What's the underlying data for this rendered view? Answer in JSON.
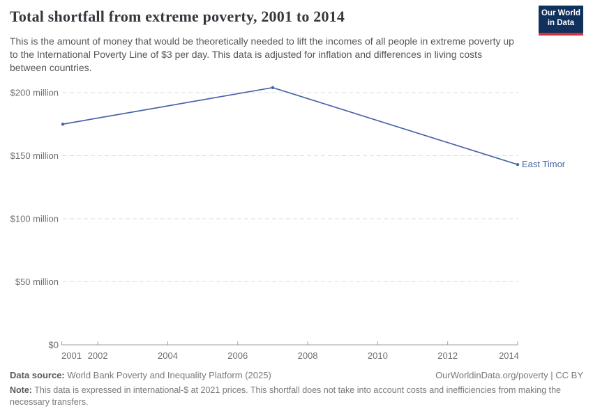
{
  "header": {
    "title": "Total shortfall from extreme poverty, 2001 to 2014",
    "subtitle": "This is the amount of money that would be theoretically needed to lift the incomes of all people in extreme poverty up to the International Poverty Line of $3 per day. This data is adjusted for inflation and differences in living costs between countries.",
    "logo": {
      "line1": "Our World",
      "line2": "in Data",
      "bg_color": "#10305e",
      "accent_color": "#d1353a"
    }
  },
  "chart_data": {
    "type": "line",
    "title": "Total shortfall from extreme poverty, 2001 to 2014",
    "xlabel": "",
    "ylabel": "",
    "xlim": [
      2001,
      2014
    ],
    "ylim": [
      0,
      200
    ],
    "grid": "horizontal-dashed",
    "legend_position": "end-of-line-label",
    "xticks": [
      2001,
      2002,
      2004,
      2006,
      2008,
      2010,
      2012,
      2014
    ],
    "yticks": [
      {
        "value": 0,
        "label": "$0"
      },
      {
        "value": 50,
        "label": "$50 million"
      },
      {
        "value": 100,
        "label": "$100 million"
      },
      {
        "value": 150,
        "label": "$150 million"
      },
      {
        "value": 200,
        "label": "$200 million"
      }
    ],
    "series": [
      {
        "name": "East Timor",
        "color": "#4864a6",
        "unit": "US$ million",
        "x": [
          2001,
          2007,
          2014
        ],
        "values": [
          175,
          204,
          143
        ]
      }
    ]
  },
  "footer": {
    "datasource_label": "Data source:",
    "datasource_text": " World Bank Poverty and Inequality Platform (2025)",
    "link": "OurWorldinData.org/poverty | CC BY",
    "note_label": "Note:",
    "note_text": " This data is expressed in international-$ at 2021 prices. This shortfall does not take into account costs and inefficiencies from making the necessary transfers."
  }
}
